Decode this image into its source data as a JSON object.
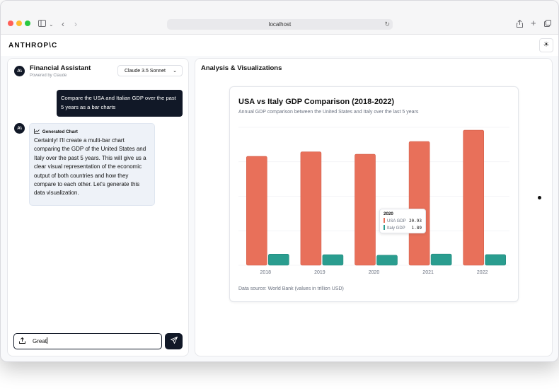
{
  "browser": {
    "url": "localhost",
    "window_controls": [
      "close",
      "minimize",
      "zoom"
    ]
  },
  "app": {
    "logo": "ANTHROP\\C",
    "theme_icon": "sun-icon"
  },
  "chat": {
    "title": "Financial Assistant",
    "subtitle": "Powered by Claude",
    "avatar_text": "A\\",
    "model": "Claude 3.5 Sonnet",
    "user_message": "Compare the USA and Italian GDP over the past 5 years as a bar charts",
    "ai_chip": "Generated Chart",
    "ai_message": "Certainly! I'll create a multi-bar chart comparing the GDP of the United States and Italy over the past 5 years. This will give us a clear visual representation of the economic output of both countries and how they compare to each other. Let's generate this data visualization.",
    "input_value": "Great"
  },
  "viz": {
    "panel_title": "Analysis & Visualizations",
    "source": "Data source: World Bank (values in trillion USD)",
    "tooltip": {
      "year": "2020",
      "rows": [
        {
          "label": "USA GDP",
          "value": "20.93"
        },
        {
          "label": "Italy GDP",
          "value": "1.89"
        }
      ]
    }
  },
  "chart_data": {
    "type": "bar",
    "title": "USA vs Italy GDP Comparison (2018-2022)",
    "subtitle": "Annual GDP comparison between the United States and Italy over the last 5 years",
    "categories": [
      "2018",
      "2019",
      "2020",
      "2021",
      "2022"
    ],
    "series": [
      {
        "name": "USA GDP",
        "values": [
          20.53,
          21.38,
          20.93,
          23.32,
          25.46
        ],
        "color": "#e8705a"
      },
      {
        "name": "Italy GDP",
        "values": [
          2.09,
          2.0,
          1.89,
          2.11,
          2.01
        ],
        "color": "#2a9d8f"
      }
    ],
    "ylim": [
      0,
      26
    ],
    "grid": true,
    "xlabel": "",
    "ylabel": ""
  }
}
